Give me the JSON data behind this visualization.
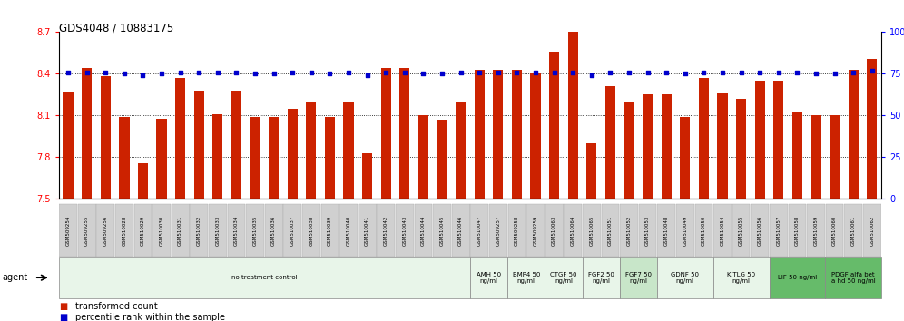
{
  "title": "GDS4048 / 10883175",
  "samples": [
    "GSM509254",
    "GSM509255",
    "GSM509256",
    "GSM510028",
    "GSM510029",
    "GSM510030",
    "GSM510031",
    "GSM510032",
    "GSM510033",
    "GSM510034",
    "GSM510035",
    "GSM510036",
    "GSM510037",
    "GSM510038",
    "GSM510039",
    "GSM510040",
    "GSM510041",
    "GSM510042",
    "GSM510043",
    "GSM510044",
    "GSM510045",
    "GSM510046",
    "GSM510047",
    "GSM509257",
    "GSM509258",
    "GSM509259",
    "GSM510063",
    "GSM510064",
    "GSM510065",
    "GSM510051",
    "GSM510052",
    "GSM510053",
    "GSM510048",
    "GSM510049",
    "GSM510050",
    "GSM510054",
    "GSM510055",
    "GSM510056",
    "GSM510057",
    "GSM510058",
    "GSM510059",
    "GSM510060",
    "GSM510061",
    "GSM510062"
  ],
  "bar_values": [
    8.27,
    8.44,
    8.38,
    8.09,
    7.76,
    8.08,
    8.37,
    8.28,
    8.11,
    8.28,
    8.09,
    8.09,
    8.15,
    8.2,
    8.09,
    8.2,
    7.83,
    8.44,
    8.44,
    8.1,
    8.07,
    8.2,
    8.43,
    8.43,
    8.43,
    8.41,
    8.56,
    8.7,
    7.9,
    8.31,
    8.2,
    8.25,
    8.25,
    8.09,
    8.37,
    8.26,
    8.22,
    8.35,
    8.35,
    8.12,
    8.1,
    8.1,
    8.43,
    8.51
  ],
  "percentile_values": [
    76,
    76,
    76,
    75,
    74,
    75,
    76,
    76,
    76,
    76,
    75,
    75,
    76,
    76,
    75,
    76,
    74,
    76,
    76,
    75,
    75,
    76,
    76,
    76,
    76,
    76,
    76,
    76,
    74,
    76,
    76,
    76,
    76,
    75,
    76,
    76,
    76,
    76,
    76,
    76,
    75,
    75,
    76,
    77
  ],
  "ylim_left": [
    7.5,
    8.7
  ],
  "ylim_right": [
    0,
    100
  ],
  "yticks_left": [
    7.5,
    7.8,
    8.1,
    8.4,
    8.7
  ],
  "yticks_right": [
    0,
    25,
    50,
    75,
    100
  ],
  "bar_color": "#cc2200",
  "dot_color": "#0000cc",
  "agents": [
    {
      "label": "no treatment control",
      "start": 0,
      "end": 22,
      "bg": "#e8f5e9",
      "n_lines": 1
    },
    {
      "label": "AMH 50\nng/ml",
      "start": 22,
      "end": 24,
      "bg": "#e8f5e9",
      "n_lines": 2
    },
    {
      "label": "BMP4 50\nng/ml",
      "start": 24,
      "end": 26,
      "bg": "#e8f5e9",
      "n_lines": 2
    },
    {
      "label": "CTGF 50\nng/ml",
      "start": 26,
      "end": 28,
      "bg": "#e8f5e9",
      "n_lines": 2
    },
    {
      "label": "FGF2 50\nng/ml",
      "start": 28,
      "end": 30,
      "bg": "#e8f5e9",
      "n_lines": 2
    },
    {
      "label": "FGF7 50\nng/ml",
      "start": 30,
      "end": 32,
      "bg": "#c8e6c9",
      "n_lines": 2
    },
    {
      "label": "GDNF 50\nng/ml",
      "start": 32,
      "end": 35,
      "bg": "#e8f5e9",
      "n_lines": 2
    },
    {
      "label": "KITLG 50\nng/ml",
      "start": 35,
      "end": 38,
      "bg": "#e8f5e9",
      "n_lines": 2
    },
    {
      "label": "LIF 50 ng/ml",
      "start": 38,
      "end": 41,
      "bg": "#66bb6a",
      "n_lines": 1
    },
    {
      "label": "PDGF alfa bet\na hd 50 ng/ml",
      "start": 41,
      "end": 44,
      "bg": "#66bb6a",
      "n_lines": 2
    }
  ],
  "bar_color_legend": "#cc2200",
  "dot_color_legend": "#0000cc"
}
